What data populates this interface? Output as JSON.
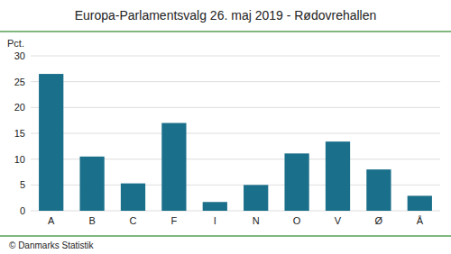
{
  "chart_data": {
    "type": "bar",
    "title": "Europa-Parlamentsvalg 26. maj 2019 - Rødovrehallen",
    "y_label": "Pct.",
    "footer": "© Danmarks Statistik",
    "categories": [
      "A",
      "B",
      "C",
      "F",
      "I",
      "N",
      "O",
      "V",
      "Ø",
      "Å"
    ],
    "values": [
      26.5,
      10.5,
      5.3,
      17.0,
      1.7,
      5.0,
      11.1,
      13.4,
      8.0,
      2.9
    ],
    "color": "#1a6f8a",
    "ylim": [
      0,
      30
    ],
    "yticks": [
      0,
      5,
      10,
      15,
      20,
      25,
      30
    ],
    "grid": true
  }
}
